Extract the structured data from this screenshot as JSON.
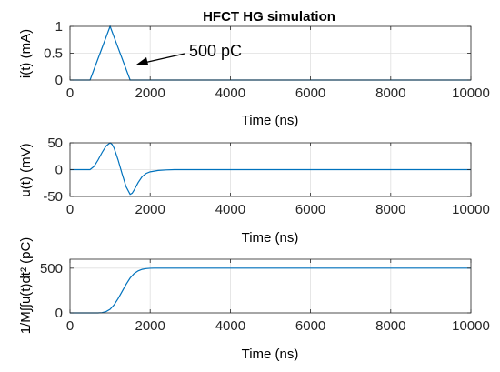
{
  "figure": {
    "title": "HFCT HG simulation",
    "line_color": "#0072BD",
    "axis_color": "#262626",
    "grid_color": "#DFDFDF"
  },
  "chart_data": [
    {
      "type": "line",
      "title": "HFCT HG simulation",
      "xlabel": "Time (ns)",
      "ylabel": "i(t) (mA)",
      "xlim": [
        0,
        10000
      ],
      "ylim": [
        0,
        1
      ],
      "xticks": [
        0,
        2000,
        4000,
        6000,
        8000,
        10000
      ],
      "yticks": [
        0,
        0.5,
        1
      ],
      "xtick_labels": [
        "0",
        "2000",
        "4000",
        "6000",
        "8000",
        "10000"
      ],
      "ytick_labels": [
        "0",
        "0.5",
        "1"
      ],
      "grid": true,
      "series": [
        {
          "x": [
            0,
            500,
            1000,
            1500,
            10000
          ],
          "y": [
            0,
            0,
            1,
            0,
            0
          ]
        }
      ],
      "annotation": {
        "text": "500 pC",
        "arrow_to": [
          1500,
          0.3
        ]
      }
    },
    {
      "type": "line",
      "xlabel": "Time (ns)",
      "ylabel": "u(t) (mV)",
      "xlim": [
        0,
        10000
      ],
      "ylim": [
        -50,
        50
      ],
      "xticks": [
        0,
        2000,
        4000,
        6000,
        8000,
        10000
      ],
      "yticks": [
        -50,
        0,
        50
      ],
      "xtick_labels": [
        "0",
        "2000",
        "4000",
        "6000",
        "8000",
        "10000"
      ],
      "ytick_labels": [
        "-50",
        "0",
        "50"
      ],
      "grid": true,
      "series": [
        {
          "x": [
            0,
            500,
            600,
            700,
            800,
            900,
            1000,
            1050,
            1100,
            1200,
            1300,
            1400,
            1500,
            1550,
            1600,
            1700,
            1800,
            1900,
            2000,
            2200,
            2400,
            2600,
            10000
          ],
          "y": [
            0,
            0,
            6,
            18,
            32,
            44,
            50,
            47,
            40,
            18,
            -8,
            -32,
            -46,
            -44,
            -38,
            -24,
            -13,
            -7,
            -4,
            -1.5,
            -0.5,
            0,
            0
          ]
        }
      ]
    },
    {
      "type": "line",
      "xlabel": "Time (ns)",
      "ylabel": "1/M∫∫u(t)dt² (pC)",
      "xlim": [
        0,
        10000
      ],
      "ylim": [
        0,
        600
      ],
      "xticks": [
        0,
        2000,
        4000,
        6000,
        8000,
        10000
      ],
      "yticks": [
        0,
        500
      ],
      "xtick_labels": [
        "0",
        "2000",
        "4000",
        "6000",
        "8000",
        "10000"
      ],
      "ytick_labels": [
        "0",
        "500"
      ],
      "grid": true,
      "series": [
        {
          "x": [
            0,
            700,
            800,
            900,
            1000,
            1100,
            1200,
            1300,
            1400,
            1500,
            1600,
            1700,
            1800,
            1900,
            2000,
            2100,
            2200,
            10000
          ],
          "y": [
            0,
            0,
            3,
            15,
            40,
            90,
            160,
            240,
            320,
            390,
            440,
            470,
            487,
            495,
            499,
            500,
            500,
            500
          ]
        }
      ]
    }
  ]
}
